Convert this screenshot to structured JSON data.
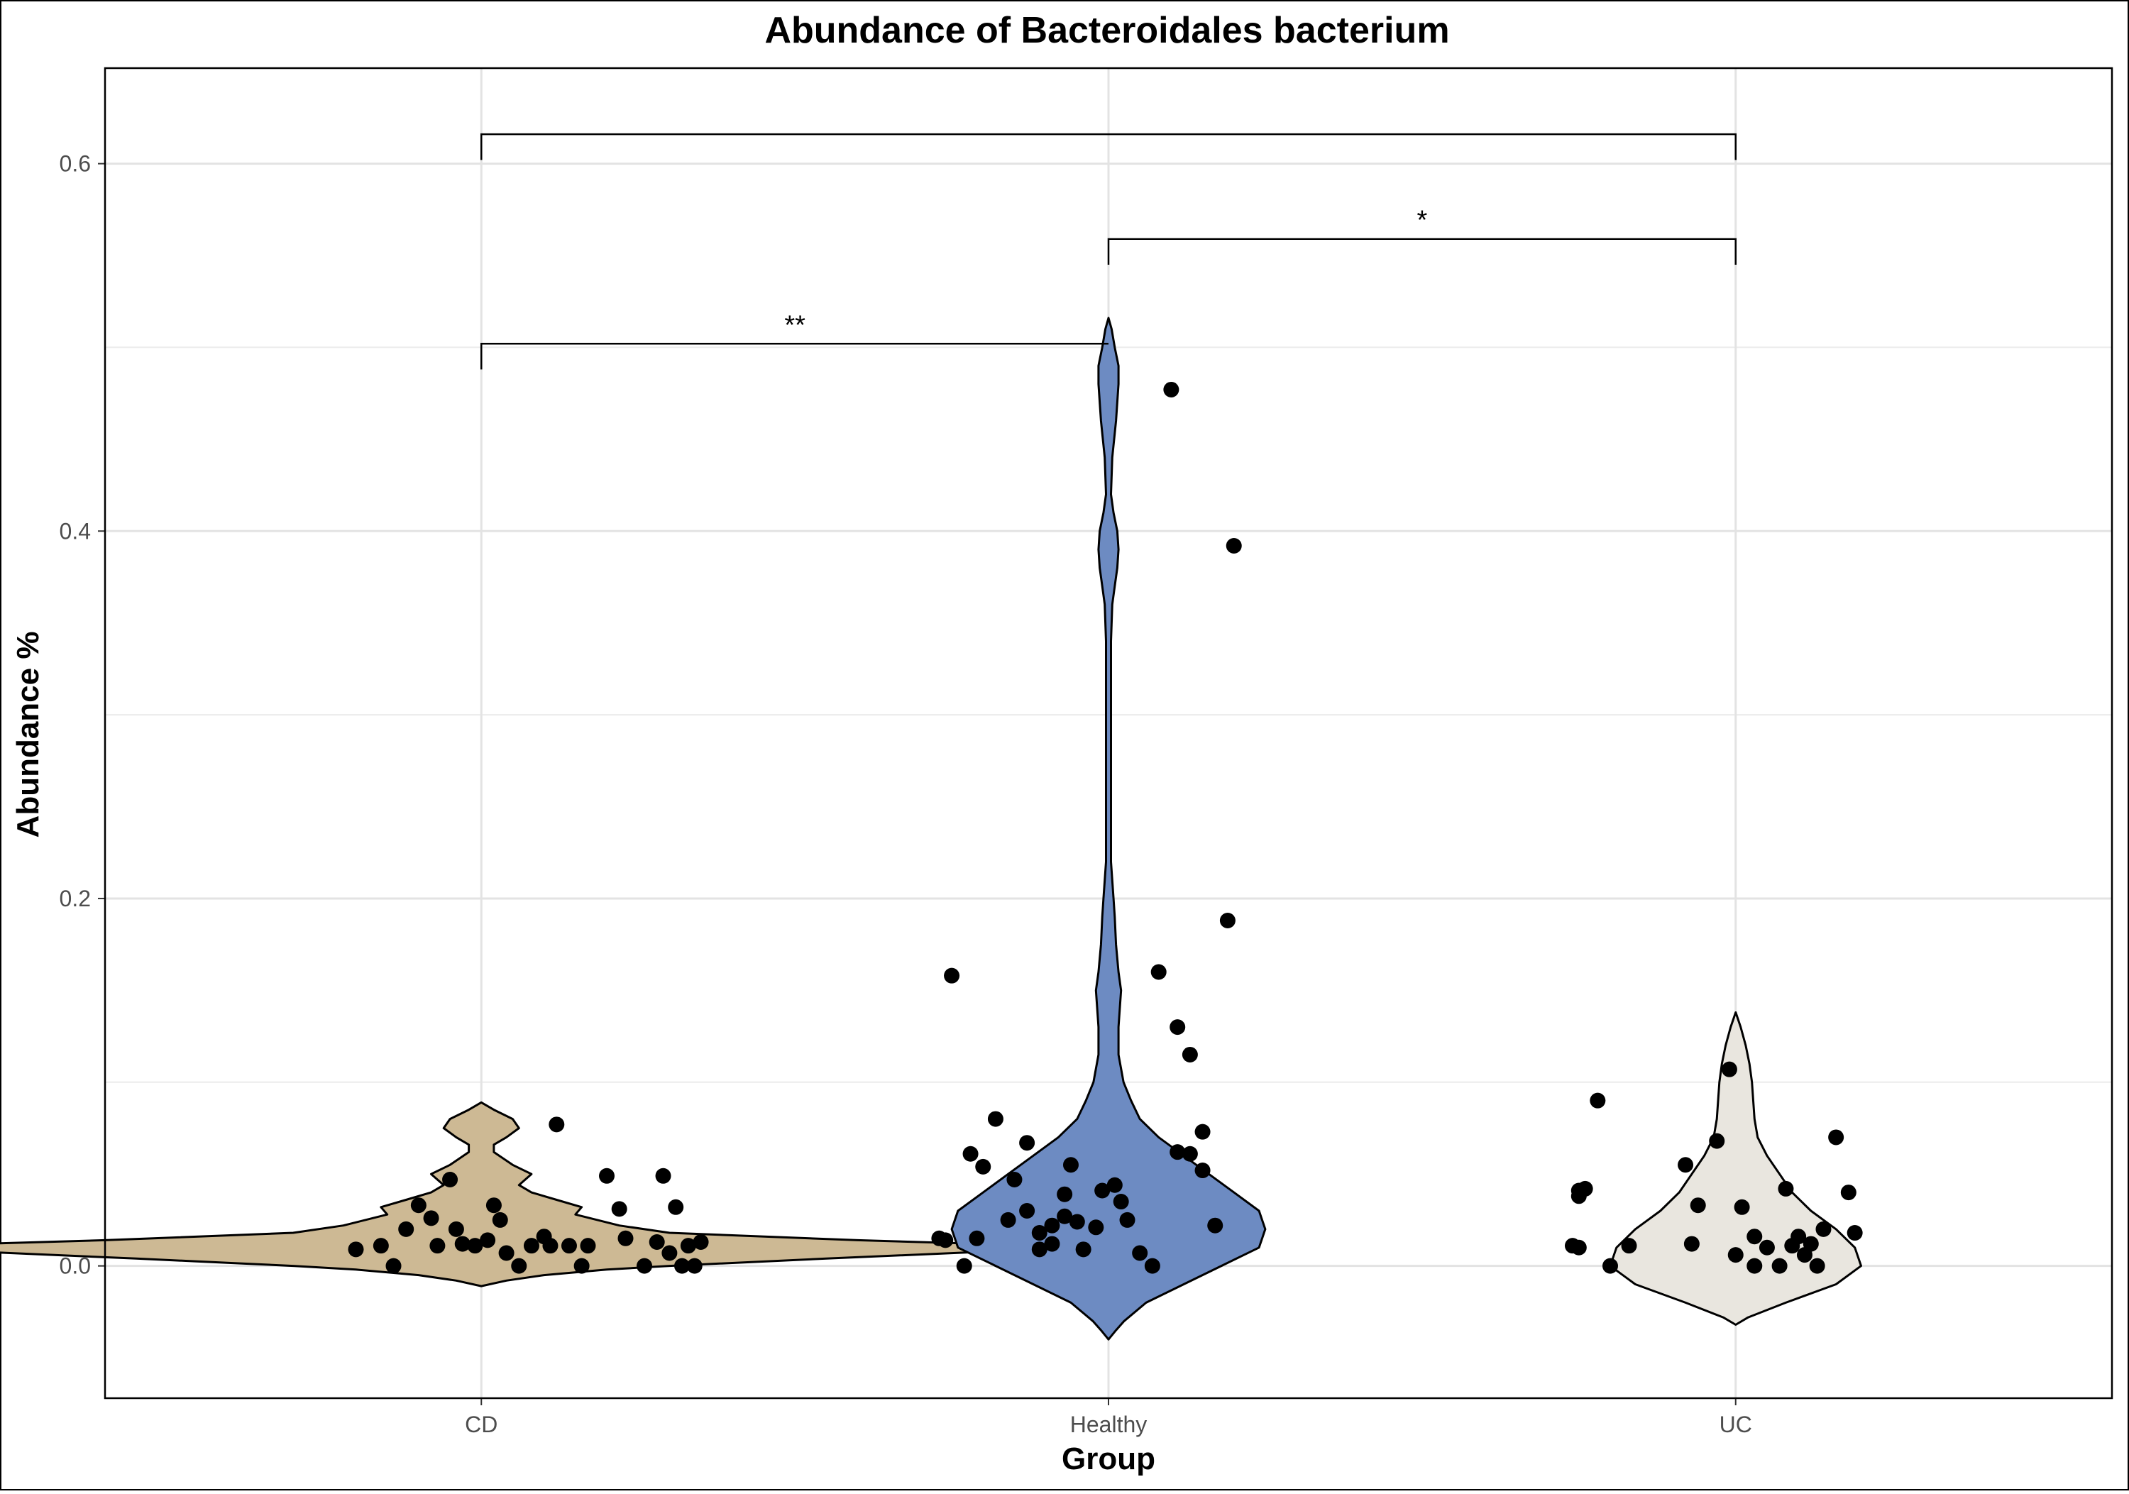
{
  "chart_data": {
    "type": "violin",
    "title": "Abundance of Bacteroidales bacterium",
    "xlabel": "Group",
    "ylabel": "Abundance %",
    "categories": [
      "CD",
      "Healthy",
      "UC"
    ],
    "ylim": [
      -0.072,
      0.652
    ],
    "yticks": [
      0.0,
      0.2,
      0.4,
      0.6
    ],
    "ytick_labels": [
      "0.0",
      "0.2",
      "0.4",
      "0.6"
    ],
    "grid": true,
    "legend": "none",
    "colors": {
      "CD": "#cdb994",
      "Healthy": "#6d8bc2",
      "UC": "#e9e6df"
    },
    "series": [
      {
        "category": "CD",
        "points": [
          [
            0.8,
            0.009
          ],
          [
            0.84,
            0.011
          ],
          [
            0.86,
            0.0
          ],
          [
            0.88,
            0.02
          ],
          [
            0.9,
            0.033
          ],
          [
            0.92,
            0.026
          ],
          [
            0.93,
            0.011
          ],
          [
            0.95,
            0.047
          ],
          [
            0.96,
            0.02
          ],
          [
            0.97,
            0.012
          ],
          [
            0.99,
            0.011
          ],
          [
            1.01,
            0.014
          ],
          [
            1.02,
            0.033
          ],
          [
            1.03,
            0.025
          ],
          [
            1.04,
            0.007
          ],
          [
            1.06,
            0.0
          ],
          [
            1.08,
            0.011
          ],
          [
            1.1,
            0.016
          ],
          [
            1.11,
            0.011
          ],
          [
            1.12,
            0.077
          ],
          [
            1.14,
            0.011
          ],
          [
            1.16,
            0.0
          ],
          [
            1.17,
            0.011
          ],
          [
            1.2,
            0.049
          ],
          [
            1.22,
            0.031
          ],
          [
            1.23,
            0.015
          ],
          [
            1.26,
            0.0
          ],
          [
            1.28,
            0.013
          ],
          [
            1.29,
            0.049
          ],
          [
            1.3,
            0.007
          ],
          [
            1.31,
            0.032
          ],
          [
            1.32,
            0.0
          ],
          [
            1.33,
            0.011
          ],
          [
            1.34,
            0.0
          ],
          [
            1.35,
            0.013
          ]
        ],
        "violin": {
          "y": [
            -0.011,
            -0.008,
            -0.005,
            -0.002,
            0.0,
            0.004,
            0.008,
            0.011,
            0.014,
            0.018,
            0.022,
            0.028,
            0.032,
            0.036,
            0.04,
            0.044,
            0.05,
            0.055,
            0.062,
            0.066,
            0.07,
            0.075,
            0.08,
            0.085,
            0.089
          ],
          "half_width": [
            0.0,
            0.04,
            0.1,
            0.2,
            0.3,
            0.55,
            0.82,
            0.9,
            0.6,
            0.3,
            0.22,
            0.15,
            0.16,
            0.12,
            0.08,
            0.06,
            0.08,
            0.05,
            0.02,
            0.02,
            0.04,
            0.06,
            0.05,
            0.02,
            0.0
          ]
        }
      },
      {
        "category": "Healthy",
        "points": [
          [
            1.73,
            0.015
          ],
          [
            1.74,
            0.014
          ],
          [
            1.75,
            0.158
          ],
          [
            1.77,
            0.0
          ],
          [
            1.78,
            0.061
          ],
          [
            1.79,
            0.015
          ],
          [
            1.8,
            0.054
          ],
          [
            1.82,
            0.08
          ],
          [
            1.84,
            0.025
          ],
          [
            1.85,
            0.047
          ],
          [
            1.87,
            0.067
          ],
          [
            1.87,
            0.03
          ],
          [
            1.89,
            0.018
          ],
          [
            1.89,
            0.009
          ],
          [
            1.91,
            0.012
          ],
          [
            1.91,
            0.022
          ],
          [
            1.93,
            0.039
          ],
          [
            1.93,
            0.027
          ],
          [
            1.94,
            0.055
          ],
          [
            1.95,
            0.024
          ],
          [
            1.96,
            0.009
          ],
          [
            1.98,
            0.021
          ],
          [
            1.99,
            0.041
          ],
          [
            2.01,
            0.044
          ],
          [
            2.02,
            0.035
          ],
          [
            2.03,
            0.025
          ],
          [
            2.05,
            0.007
          ],
          [
            2.07,
            0.0
          ],
          [
            2.08,
            0.16
          ],
          [
            2.1,
            0.477
          ],
          [
            2.11,
            0.13
          ],
          [
            2.11,
            0.062
          ],
          [
            2.13,
            0.061
          ],
          [
            2.13,
            0.115
          ],
          [
            2.15,
            0.073
          ],
          [
            2.15,
            0.052
          ],
          [
            2.17,
            0.022
          ],
          [
            2.19,
            0.188
          ],
          [
            2.2,
            0.392
          ]
        ],
        "violin": {
          "y": [
            -0.04,
            -0.035,
            -0.03,
            -0.02,
            -0.01,
            0.0,
            0.01,
            0.02,
            0.03,
            0.04,
            0.05,
            0.06,
            0.07,
            0.08,
            0.09,
            0.1,
            0.115,
            0.13,
            0.14,
            0.15,
            0.16,
            0.175,
            0.19,
            0.2,
            0.21,
            0.22,
            0.26,
            0.3,
            0.34,
            0.36,
            0.37,
            0.38,
            0.39,
            0.4,
            0.41,
            0.42,
            0.44,
            0.46,
            0.48,
            0.49,
            0.5,
            0.51,
            0.516
          ],
          "half_width": [
            0.0,
            0.012,
            0.025,
            0.06,
            0.12,
            0.18,
            0.24,
            0.25,
            0.24,
            0.2,
            0.16,
            0.12,
            0.08,
            0.05,
            0.036,
            0.024,
            0.016,
            0.016,
            0.018,
            0.02,
            0.016,
            0.012,
            0.01,
            0.008,
            0.006,
            0.004,
            0.004,
            0.004,
            0.004,
            0.006,
            0.01,
            0.014,
            0.016,
            0.014,
            0.008,
            0.004,
            0.006,
            0.012,
            0.016,
            0.016,
            0.01,
            0.005,
            0.0
          ]
        }
      },
      {
        "category": "UC",
        "points": [
          [
            2.74,
            0.011
          ],
          [
            2.75,
            0.038
          ],
          [
            2.75,
            0.041
          ],
          [
            2.75,
            0.01
          ],
          [
            2.76,
            0.042
          ],
          [
            2.78,
            0.09
          ],
          [
            2.8,
            0.0
          ],
          [
            2.83,
            0.011
          ],
          [
            2.92,
            0.055
          ],
          [
            2.93,
            0.012
          ],
          [
            2.94,
            0.033
          ],
          [
            2.97,
            0.068
          ],
          [
            2.99,
            0.107
          ],
          [
            3.0,
            0.006
          ],
          [
            3.01,
            0.032
          ],
          [
            3.03,
            0.0
          ],
          [
            3.03,
            0.016
          ],
          [
            3.05,
            0.01
          ],
          [
            3.07,
            0.0
          ],
          [
            3.08,
            0.042
          ],
          [
            3.09,
            0.011
          ],
          [
            3.1,
            0.016
          ],
          [
            3.11,
            0.006
          ],
          [
            3.12,
            0.012
          ],
          [
            3.13,
            0.0
          ],
          [
            3.14,
            0.02
          ],
          [
            3.16,
            0.07
          ],
          [
            3.18,
            0.04
          ],
          [
            3.19,
            0.018
          ]
        ],
        "violin": {
          "y": [
            -0.032,
            -0.028,
            -0.02,
            -0.01,
            0.0,
            0.01,
            0.02,
            0.03,
            0.04,
            0.05,
            0.06,
            0.07,
            0.08,
            0.09,
            0.1,
            0.11,
            0.12,
            0.13,
            0.138
          ],
          "half_width": [
            0.0,
            0.02,
            0.08,
            0.16,
            0.2,
            0.19,
            0.16,
            0.12,
            0.09,
            0.07,
            0.05,
            0.035,
            0.03,
            0.028,
            0.026,
            0.022,
            0.016,
            0.008,
            0.0
          ]
        }
      }
    ],
    "significance": [
      {
        "from": "CD",
        "to": "Healthy",
        "label": "**",
        "y": 0.502,
        "ystart": 0.488,
        "yend": 0.502
      },
      {
        "from": "Healthy",
        "to": "UC",
        "label": "*",
        "y": 0.559,
        "ystart": 0.545,
        "yend": 0.545
      },
      {
        "from": "CD",
        "to": "UC",
        "label": "",
        "y": 0.616,
        "ystart": 0.602,
        "yend": 0.602
      }
    ]
  }
}
